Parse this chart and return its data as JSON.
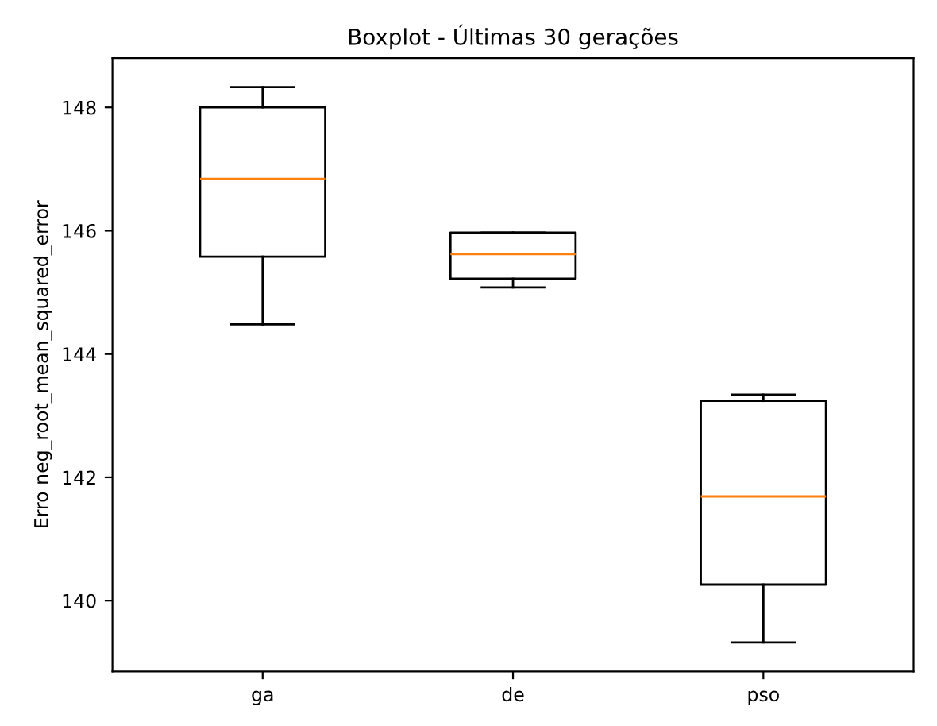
{
  "chart_data": {
    "type": "box",
    "title": "Boxplot - Últimas 30 gerações",
    "ylabel": "Erro neg_root_mean_squared_error",
    "categories": [
      "ga",
      "de",
      "pso"
    ],
    "boxes": [
      {
        "low": 144.48,
        "q1": 145.58,
        "median": 146.84,
        "q3": 148.0,
        "high": 148.33
      },
      {
        "low": 145.08,
        "q1": 145.22,
        "median": 145.62,
        "q3": 145.97,
        "high": 145.97
      },
      {
        "low": 139.32,
        "q1": 140.26,
        "median": 141.69,
        "q3": 143.24,
        "high": 143.34
      }
    ],
    "ylim": [
      138.85,
      148.8
    ],
    "yticks": [
      140,
      142,
      144,
      146,
      148
    ],
    "grid": false
  }
}
